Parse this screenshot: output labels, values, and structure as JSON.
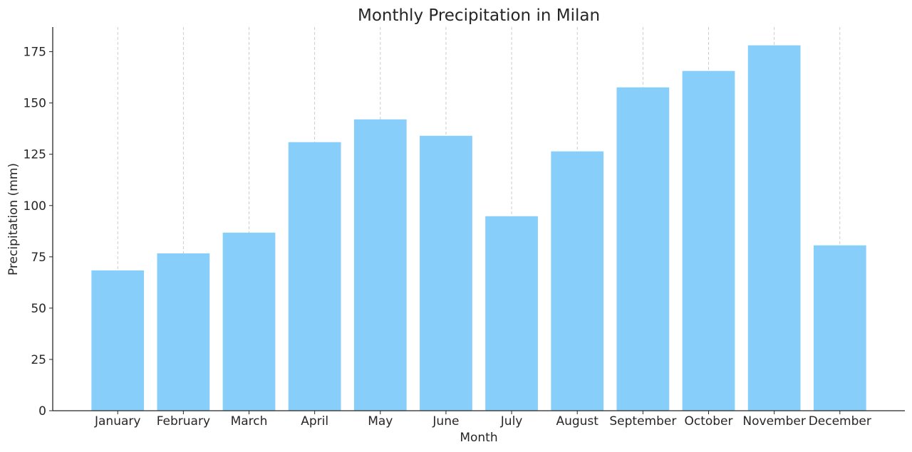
{
  "chart_data": {
    "type": "bar",
    "title": "Monthly Precipitation in Milan",
    "xlabel": "Month",
    "ylabel": "Precipitation (mm)",
    "categories": [
      "January",
      "February",
      "March",
      "April",
      "May",
      "June",
      "July",
      "August",
      "September",
      "October",
      "November",
      "December"
    ],
    "values": [
      68.4,
      76.7,
      86.8,
      130.9,
      142.0,
      134.0,
      94.8,
      126.4,
      157.6,
      165.6,
      178.1,
      80.6
    ],
    "ylim": [
      0,
      187
    ],
    "yticks": [
      0,
      25,
      50,
      75,
      100,
      125,
      150,
      175
    ],
    "grid": "x-dashed",
    "bar_color": "#87CEFA"
  }
}
